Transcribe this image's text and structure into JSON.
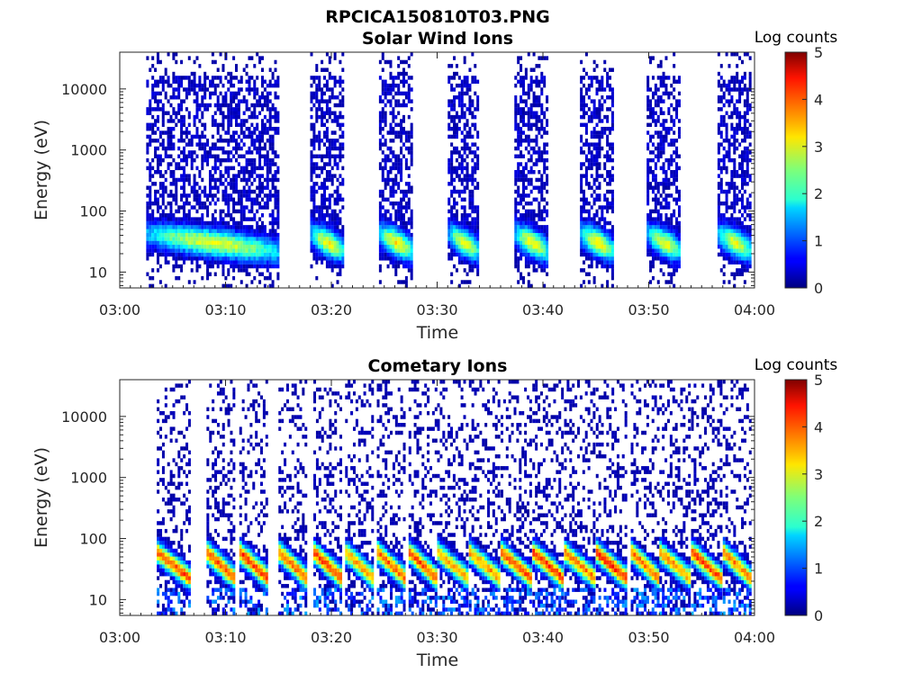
{
  "figure": {
    "filename_title": "RPCICA150810T03.PNG"
  },
  "chart_data": [
    {
      "type": "heatmap",
      "title": "Solar Wind Ions",
      "xlabel": "Time",
      "ylabel": "Energy (eV)",
      "x_range": [
        "03:00",
        "04:00"
      ],
      "x_ticks": [
        "03:00",
        "03:10",
        "03:20",
        "03:30",
        "03:40",
        "03:50",
        "04:00"
      ],
      "y_scale": "log",
      "y_range": [
        5.5,
        40000
      ],
      "y_ticks": [
        {
          "value": 10,
          "label": "10"
        },
        {
          "value": 100,
          "label": "100"
        },
        {
          "value": 1000,
          "label": "1000"
        },
        {
          "value": 10000,
          "label": "10000"
        }
      ],
      "colorbar": {
        "label": "Log counts",
        "range": [
          0,
          5
        ],
        "ticks": [
          "0",
          "1",
          "2",
          "3",
          "4",
          "5"
        ],
        "colormap": "jet"
      },
      "background_range_min": [
        2.5,
        15.0
      ],
      "peak_energy_eV": 30,
      "peak_log_counts": 3.2,
      "sweeps": [
        {
          "start_min": 2.5,
          "end_min": 15.0,
          "peak_log_counts": 3.0
        },
        {
          "start_min": 18.0,
          "end_min": 21.3,
          "peak_log_counts": 3.1
        },
        {
          "start_min": 24.5,
          "end_min": 27.7,
          "peak_log_counts": 3.2
        },
        {
          "start_min": 31.0,
          "end_min": 34.0,
          "peak_log_counts": 3.0
        },
        {
          "start_min": 37.3,
          "end_min": 40.5,
          "peak_log_counts": 3.1
        },
        {
          "start_min": 43.5,
          "end_min": 46.8,
          "peak_log_counts": 3.2
        },
        {
          "start_min": 49.8,
          "end_min": 53.0,
          "peak_log_counts": 3.0
        },
        {
          "start_min": 56.5,
          "end_min": 59.8,
          "peak_log_counts": 3.0
        }
      ]
    },
    {
      "type": "heatmap",
      "title": "Cometary Ions",
      "xlabel": "Time",
      "ylabel": "Energy (eV)",
      "x_range": [
        "03:00",
        "04:00"
      ],
      "x_ticks": [
        "03:00",
        "03:10",
        "03:20",
        "03:30",
        "03:40",
        "03:50",
        "04:00"
      ],
      "y_scale": "log",
      "y_range": [
        5.5,
        40000
      ],
      "y_ticks": [
        {
          "value": 10,
          "label": "10"
        },
        {
          "value": 100,
          "label": "100"
        },
        {
          "value": 1000,
          "label": "1000"
        },
        {
          "value": 10000,
          "label": "10000"
        }
      ],
      "colorbar": {
        "label": "Log counts",
        "range": [
          0,
          5
        ],
        "ticks": [
          "0",
          "1",
          "2",
          "3",
          "4",
          "5"
        ],
        "colormap": "jet"
      },
      "data_range_min": [
        2.5,
        59.8
      ],
      "peak_energy_eV": 35,
      "peak_log_counts": 4.2,
      "sweeps": [
        {
          "start_min": 3.5,
          "end_min": 6.7,
          "peak_log_counts": 4.0
        },
        {
          "start_min": 8.2,
          "end_min": 10.8,
          "peak_log_counts": 4.0
        },
        {
          "start_min": 11.3,
          "end_min": 14.0,
          "peak_log_counts": 4.1
        },
        {
          "start_min": 15.0,
          "end_min": 17.7,
          "peak_log_counts": 3.9
        },
        {
          "start_min": 18.3,
          "end_min": 21.0,
          "peak_log_counts": 4.1
        },
        {
          "start_min": 21.3,
          "end_min": 24.0,
          "peak_log_counts": 3.6
        },
        {
          "start_min": 24.3,
          "end_min": 27.0,
          "peak_log_counts": 3.9
        },
        {
          "start_min": 27.3,
          "end_min": 30.0,
          "peak_log_counts": 4.0
        },
        {
          "start_min": 30.0,
          "end_min": 33.0,
          "peak_log_counts": 3.5
        },
        {
          "start_min": 33.0,
          "end_min": 36.0,
          "peak_log_counts": 3.6
        },
        {
          "start_min": 36.0,
          "end_min": 39.0,
          "peak_log_counts": 4.0
        },
        {
          "start_min": 39.0,
          "end_min": 42.0,
          "peak_log_counts": 4.1
        },
        {
          "start_min": 42.0,
          "end_min": 45.0,
          "peak_log_counts": 3.8
        },
        {
          "start_min": 45.0,
          "end_min": 48.0,
          "peak_log_counts": 4.2
        },
        {
          "start_min": 48.3,
          "end_min": 51.0,
          "peak_log_counts": 3.8
        },
        {
          "start_min": 51.0,
          "end_min": 54.0,
          "peak_log_counts": 3.6
        },
        {
          "start_min": 54.0,
          "end_min": 57.0,
          "peak_log_counts": 4.0
        },
        {
          "start_min": 57.0,
          "end_min": 59.8,
          "peak_log_counts": 3.7
        }
      ]
    }
  ]
}
